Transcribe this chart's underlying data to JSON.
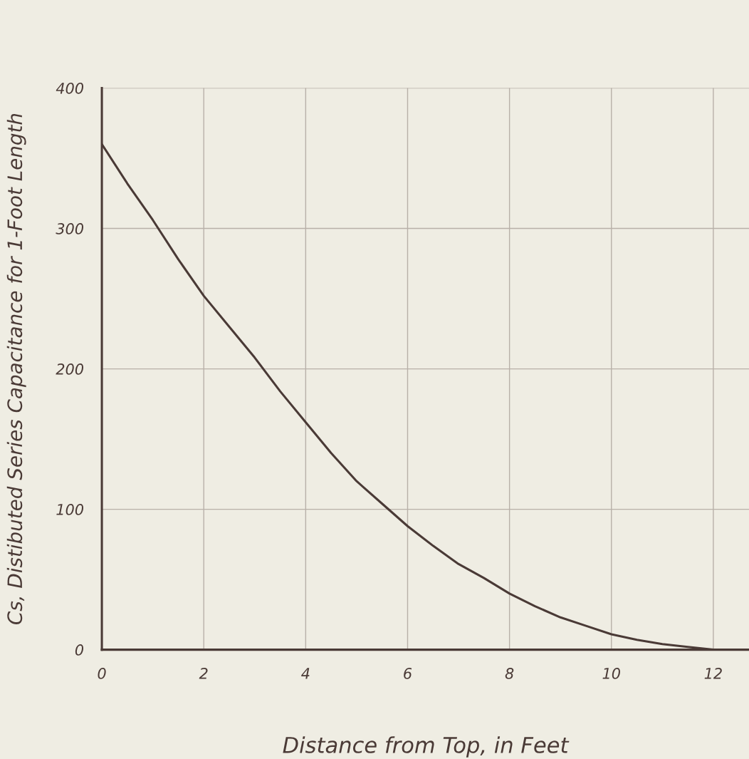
{
  "chart_data": {
    "type": "line",
    "xlabel": "Distance from Top, in Feet",
    "ylabel": "Cs, Distibuted Series Capacitance for 1-Foot Length",
    "x": [
      0,
      0.5,
      1,
      1.5,
      2,
      2.5,
      3,
      3.5,
      4,
      4.5,
      5,
      5.5,
      6,
      6.5,
      7,
      7.5,
      8,
      8.5,
      9,
      9.5,
      10,
      10.5,
      11,
      11.5,
      12
    ],
    "series": [
      {
        "color": "#4a3a36",
        "values": [
          360,
          332,
          306,
          278,
          252,
          230,
          208,
          184,
          162,
          140,
          120,
          104,
          88,
          74,
          61,
          51,
          40,
          31,
          23,
          17,
          11,
          7,
          4,
          2,
          0
        ]
      }
    ],
    "xlim": [
      0,
      12.7
    ],
    "ylim": [
      0,
      400
    ],
    "xticks": [
      0,
      2,
      4,
      6,
      8,
      10,
      12
    ],
    "yticks": [
      0,
      100,
      200,
      300,
      400
    ],
    "grid": true,
    "line_style": "solid",
    "marker": "none"
  }
}
